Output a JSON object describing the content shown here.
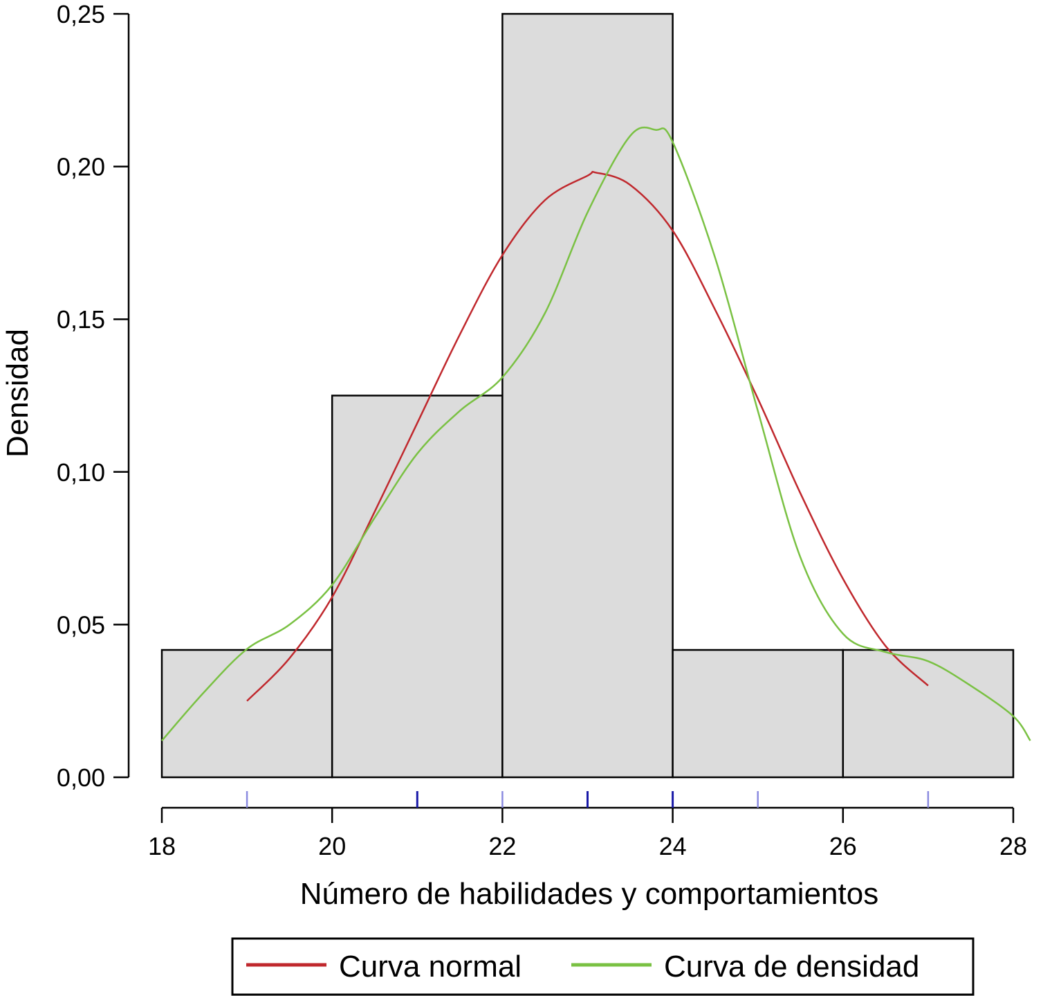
{
  "chart_data": {
    "type": "histogram",
    "xlabel": "Número de habilidades y comportamientos",
    "ylabel": "Densidad",
    "xlim": [
      18,
      28
    ],
    "ylim": [
      0,
      0.25
    ],
    "x_ticks": [
      "18",
      "20",
      "22",
      "24",
      "26",
      "28"
    ],
    "y_ticks": [
      "0,00",
      "0,05",
      "0,10",
      "0,15",
      "0,20",
      "0,25"
    ],
    "bins": [
      {
        "x0": 18,
        "x1": 20,
        "density": 0.0417
      },
      {
        "x0": 20,
        "x1": 22,
        "density": 0.125
      },
      {
        "x0": 22,
        "x1": 24,
        "density": 0.25
      },
      {
        "x0": 24,
        "x1": 26,
        "density": 0.0417
      },
      {
        "x0": 26,
        "x1": 28,
        "density": 0.0417
      }
    ],
    "rug": [
      {
        "x": 19,
        "strength": 0.4
      },
      {
        "x": 21,
        "strength": 1.0
      },
      {
        "x": 22,
        "strength": 0.4
      },
      {
        "x": 23,
        "strength": 0.8
      },
      {
        "x": 24,
        "strength": 1.0
      },
      {
        "x": 25,
        "strength": 0.4
      },
      {
        "x": 27,
        "strength": 0.4
      }
    ],
    "series": [
      {
        "name": "Curva normal",
        "color": "#c0282d",
        "x": [
          19,
          19.5,
          20,
          20.5,
          21,
          21.5,
          22,
          22.5,
          23,
          23.1,
          23.5,
          24,
          24.5,
          25,
          25.5,
          26,
          26.5,
          27
        ],
        "y": [
          0.025,
          0.039,
          0.059,
          0.087,
          0.116,
          0.145,
          0.171,
          0.189,
          0.197,
          0.198,
          0.194,
          0.179,
          0.153,
          0.124,
          0.093,
          0.065,
          0.043,
          0.03
        ]
      },
      {
        "name": "Curva de densidad",
        "color": "#7ac143",
        "x": [
          18,
          18.5,
          19,
          19.5,
          20,
          20.5,
          21,
          21.5,
          22,
          22.5,
          23,
          23.5,
          23.8,
          24,
          24.5,
          25,
          25.5,
          26,
          26.5,
          27,
          27.5,
          28,
          28.2
        ],
        "y": [
          0.012,
          0.028,
          0.042,
          0.05,
          0.063,
          0.085,
          0.106,
          0.12,
          0.131,
          0.152,
          0.185,
          0.21,
          0.212,
          0.208,
          0.17,
          0.12,
          0.072,
          0.047,
          0.041,
          0.038,
          0.03,
          0.02,
          0.012
        ]
      }
    ],
    "legend_position": "bottom"
  }
}
